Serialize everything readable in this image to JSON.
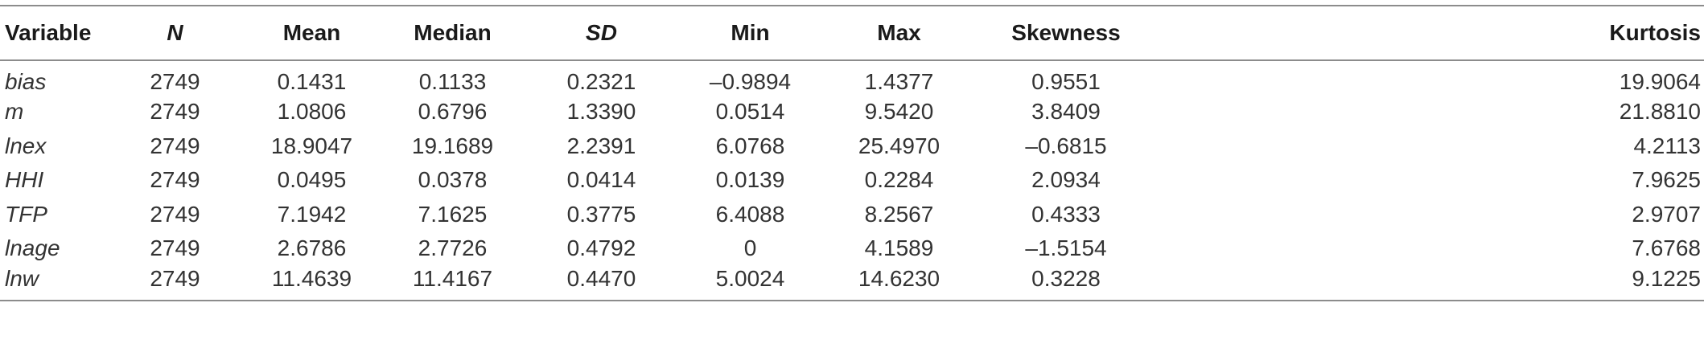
{
  "table": {
    "headers": [
      "Variable",
      "N",
      "Mean",
      "Median",
      "SD",
      "Min",
      "Max",
      "Skewness",
      "Kurtosis"
    ],
    "rows": [
      [
        "bias",
        "2749",
        "0.1431",
        "0.1133",
        "0.2321",
        "–0.9894",
        "1.4377",
        "0.9551",
        "19.9064"
      ],
      [
        "m",
        "2749",
        "1.0806",
        "0.6796",
        "1.3390",
        "0.0514",
        "9.5420",
        "3.8409",
        "21.8810"
      ],
      [
        "lnex",
        "2749",
        "18.9047",
        "19.1689",
        "2.2391",
        "6.0768",
        "25.4970",
        "–0.6815",
        "4.2113"
      ],
      [
        "HHI",
        "2749",
        "0.0495",
        "0.0378",
        "0.0414",
        "0.0139",
        "0.2284",
        "2.0934",
        "7.9625"
      ],
      [
        "TFP",
        "2749",
        "7.1942",
        "7.1625",
        "0.3775",
        "6.4088",
        "8.2567",
        "0.4333",
        "2.9707"
      ],
      [
        "lnage",
        "2749",
        "2.6786",
        "2.7726",
        "0.4792",
        "0",
        "4.1589",
        "–1.5154",
        "7.6768"
      ],
      [
        "lnw",
        "2749",
        "11.4639",
        "11.4167",
        "0.4470",
        "5.0024",
        "14.6230",
        "0.3228",
        "9.1225"
      ]
    ]
  }
}
